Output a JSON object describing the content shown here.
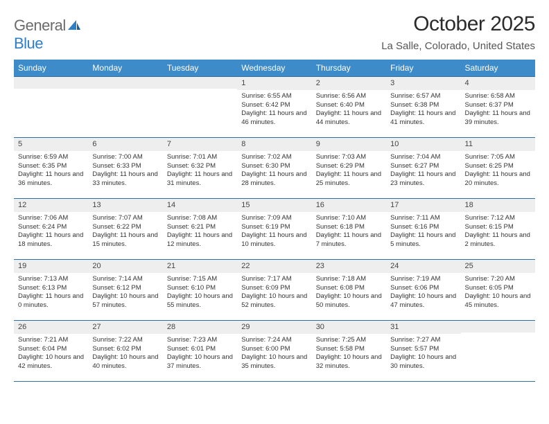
{
  "logo": {
    "word1": "General",
    "word2": "Blue"
  },
  "title": "October 2025",
  "location": "La Salle, Colorado, United States",
  "colors": {
    "header_bg": "#3d8bc8",
    "header_text": "#ffffff",
    "rule": "#2d6fa3",
    "daynum_bg": "#eeeeee",
    "logo_gray": "#6b6b6b",
    "logo_blue": "#2d7ec8"
  },
  "weekdays": [
    "Sunday",
    "Monday",
    "Tuesday",
    "Wednesday",
    "Thursday",
    "Friday",
    "Saturday"
  ],
  "weeks": [
    [
      {
        "n": "",
        "sr": "",
        "ss": "",
        "dl": ""
      },
      {
        "n": "",
        "sr": "",
        "ss": "",
        "dl": ""
      },
      {
        "n": "",
        "sr": "",
        "ss": "",
        "dl": ""
      },
      {
        "n": "1",
        "sr": "6:55 AM",
        "ss": "6:42 PM",
        "dl": "11 hours and 46 minutes."
      },
      {
        "n": "2",
        "sr": "6:56 AM",
        "ss": "6:40 PM",
        "dl": "11 hours and 44 minutes."
      },
      {
        "n": "3",
        "sr": "6:57 AM",
        "ss": "6:38 PM",
        "dl": "11 hours and 41 minutes."
      },
      {
        "n": "4",
        "sr": "6:58 AM",
        "ss": "6:37 PM",
        "dl": "11 hours and 39 minutes."
      }
    ],
    [
      {
        "n": "5",
        "sr": "6:59 AM",
        "ss": "6:35 PM",
        "dl": "11 hours and 36 minutes."
      },
      {
        "n": "6",
        "sr": "7:00 AM",
        "ss": "6:33 PM",
        "dl": "11 hours and 33 minutes."
      },
      {
        "n": "7",
        "sr": "7:01 AM",
        "ss": "6:32 PM",
        "dl": "11 hours and 31 minutes."
      },
      {
        "n": "8",
        "sr": "7:02 AM",
        "ss": "6:30 PM",
        "dl": "11 hours and 28 minutes."
      },
      {
        "n": "9",
        "sr": "7:03 AM",
        "ss": "6:29 PM",
        "dl": "11 hours and 25 minutes."
      },
      {
        "n": "10",
        "sr": "7:04 AM",
        "ss": "6:27 PM",
        "dl": "11 hours and 23 minutes."
      },
      {
        "n": "11",
        "sr": "7:05 AM",
        "ss": "6:25 PM",
        "dl": "11 hours and 20 minutes."
      }
    ],
    [
      {
        "n": "12",
        "sr": "7:06 AM",
        "ss": "6:24 PM",
        "dl": "11 hours and 18 minutes."
      },
      {
        "n": "13",
        "sr": "7:07 AM",
        "ss": "6:22 PM",
        "dl": "11 hours and 15 minutes."
      },
      {
        "n": "14",
        "sr": "7:08 AM",
        "ss": "6:21 PM",
        "dl": "11 hours and 12 minutes."
      },
      {
        "n": "15",
        "sr": "7:09 AM",
        "ss": "6:19 PM",
        "dl": "11 hours and 10 minutes."
      },
      {
        "n": "16",
        "sr": "7:10 AM",
        "ss": "6:18 PM",
        "dl": "11 hours and 7 minutes."
      },
      {
        "n": "17",
        "sr": "7:11 AM",
        "ss": "6:16 PM",
        "dl": "11 hours and 5 minutes."
      },
      {
        "n": "18",
        "sr": "7:12 AM",
        "ss": "6:15 PM",
        "dl": "11 hours and 2 minutes."
      }
    ],
    [
      {
        "n": "19",
        "sr": "7:13 AM",
        "ss": "6:13 PM",
        "dl": "11 hours and 0 minutes."
      },
      {
        "n": "20",
        "sr": "7:14 AM",
        "ss": "6:12 PM",
        "dl": "10 hours and 57 minutes."
      },
      {
        "n": "21",
        "sr": "7:15 AM",
        "ss": "6:10 PM",
        "dl": "10 hours and 55 minutes."
      },
      {
        "n": "22",
        "sr": "7:17 AM",
        "ss": "6:09 PM",
        "dl": "10 hours and 52 minutes."
      },
      {
        "n": "23",
        "sr": "7:18 AM",
        "ss": "6:08 PM",
        "dl": "10 hours and 50 minutes."
      },
      {
        "n": "24",
        "sr": "7:19 AM",
        "ss": "6:06 PM",
        "dl": "10 hours and 47 minutes."
      },
      {
        "n": "25",
        "sr": "7:20 AM",
        "ss": "6:05 PM",
        "dl": "10 hours and 45 minutes."
      }
    ],
    [
      {
        "n": "26",
        "sr": "7:21 AM",
        "ss": "6:04 PM",
        "dl": "10 hours and 42 minutes."
      },
      {
        "n": "27",
        "sr": "7:22 AM",
        "ss": "6:02 PM",
        "dl": "10 hours and 40 minutes."
      },
      {
        "n": "28",
        "sr": "7:23 AM",
        "ss": "6:01 PM",
        "dl": "10 hours and 37 minutes."
      },
      {
        "n": "29",
        "sr": "7:24 AM",
        "ss": "6:00 PM",
        "dl": "10 hours and 35 minutes."
      },
      {
        "n": "30",
        "sr": "7:25 AM",
        "ss": "5:58 PM",
        "dl": "10 hours and 32 minutes."
      },
      {
        "n": "31",
        "sr": "7:27 AM",
        "ss": "5:57 PM",
        "dl": "10 hours and 30 minutes."
      },
      {
        "n": "",
        "sr": "",
        "ss": "",
        "dl": ""
      }
    ]
  ],
  "labels": {
    "sunrise": "Sunrise: ",
    "sunset": "Sunset: ",
    "daylight": "Daylight: "
  }
}
